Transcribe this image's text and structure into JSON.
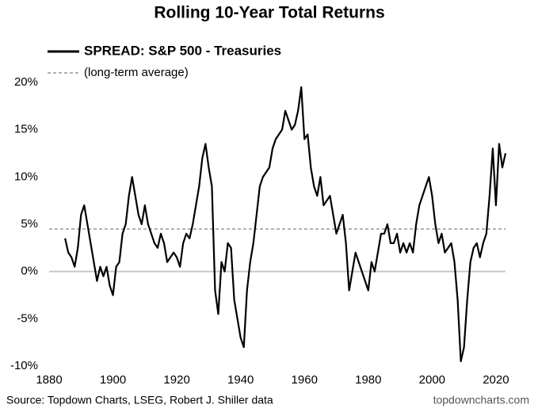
{
  "chart_data": {
    "type": "line",
    "title": "Rolling 10-Year Total Returns",
    "source": "Source: Topdown Charts, LSEG, Robert J. Shiller data",
    "website": "topdowncharts.com",
    "x": [
      1885,
      1886,
      1887,
      1888,
      1889,
      1890,
      1891,
      1892,
      1893,
      1894,
      1895,
      1896,
      1897,
      1898,
      1899,
      1900,
      1901,
      1902,
      1903,
      1904,
      1905,
      1906,
      1907,
      1908,
      1909,
      1910,
      1911,
      1912,
      1913,
      1914,
      1915,
      1916,
      1917,
      1918,
      1919,
      1920,
      1921,
      1922,
      1923,
      1924,
      1925,
      1926,
      1927,
      1928,
      1929,
      1930,
      1931,
      1932,
      1933,
      1934,
      1935,
      1936,
      1937,
      1938,
      1939,
      1940,
      1941,
      1942,
      1943,
      1944,
      1945,
      1946,
      1947,
      1948,
      1949,
      1950,
      1951,
      1952,
      1953,
      1954,
      1955,
      1956,
      1957,
      1958,
      1959,
      1960,
      1961,
      1962,
      1963,
      1964,
      1965,
      1966,
      1967,
      1968,
      1969,
      1970,
      1971,
      1972,
      1973,
      1974,
      1975,
      1976,
      1977,
      1978,
      1979,
      1980,
      1981,
      1982,
      1983,
      1984,
      1985,
      1986,
      1987,
      1988,
      1989,
      1990,
      1991,
      1992,
      1993,
      1994,
      1995,
      1996,
      1997,
      1998,
      1999,
      2000,
      2001,
      2002,
      2003,
      2004,
      2005,
      2006,
      2007,
      2008,
      2009,
      2010,
      2011,
      2012,
      2013,
      2014,
      2015,
      2016,
      2017,
      2018,
      2019,
      2020,
      2021,
      2022,
      2023
    ],
    "series": [
      {
        "name": "SPREAD: S&P 500 - Treasuries",
        "color": "#000000",
        "values": [
          3.5,
          2,
          1.5,
          0.5,
          2.5,
          6,
          7,
          5,
          3,
          1,
          -1,
          0.5,
          -0.5,
          0.5,
          -1.5,
          -2.5,
          0.5,
          1,
          4,
          5,
          8,
          10,
          8,
          6,
          5,
          7,
          5,
          4,
          3,
          2.5,
          4,
          3,
          1,
          1.5,
          2,
          1.5,
          0.5,
          3,
          4,
          3.5,
          5,
          7,
          9,
          12,
          13.5,
          11,
          9,
          -2,
          -4.5,
          1,
          0,
          3,
          2.5,
          -3,
          -5,
          -7,
          -8,
          -2,
          1,
          3,
          6,
          9,
          10,
          10.5,
          11,
          13,
          14,
          14.5,
          15,
          17,
          16,
          15,
          15.5,
          17,
          19.5,
          14,
          14.5,
          11,
          9,
          8,
          10,
          7,
          7.5,
          8,
          6,
          4,
          5,
          6,
          3,
          -2,
          0,
          2,
          1,
          0,
          -1,
          -2,
          1,
          0,
          2,
          4,
          4,
          5,
          3,
          3,
          4,
          2,
          3,
          2,
          3,
          2,
          5,
          7,
          8,
          9,
          10,
          8,
          5,
          3,
          4,
          2,
          2.5,
          3,
          1,
          -3,
          -9.5,
          -8,
          -3,
          1,
          2.5,
          3,
          1.5,
          3,
          4,
          8,
          13,
          7,
          13.5,
          11,
          12.5
        ]
      }
    ],
    "average": {
      "name": "(long-term average)",
      "value": 4.5,
      "color": "#999999"
    },
    "xlim": [
      1880,
      2023
    ],
    "xticks": [
      1880,
      1900,
      1920,
      1940,
      1960,
      1980,
      2000,
      2020
    ],
    "ylim": [
      -10,
      20
    ],
    "yticks": [
      {
        "value": 20,
        "label": "20%"
      },
      {
        "value": 15,
        "label": "15%"
      },
      {
        "value": 10,
        "label": "10%"
      },
      {
        "value": 5,
        "label": "5%"
      },
      {
        "value": 0,
        "label": "0%"
      },
      {
        "value": -5,
        "label": "-5%"
      },
      {
        "value": -10,
        "label": "-10%"
      }
    ]
  }
}
